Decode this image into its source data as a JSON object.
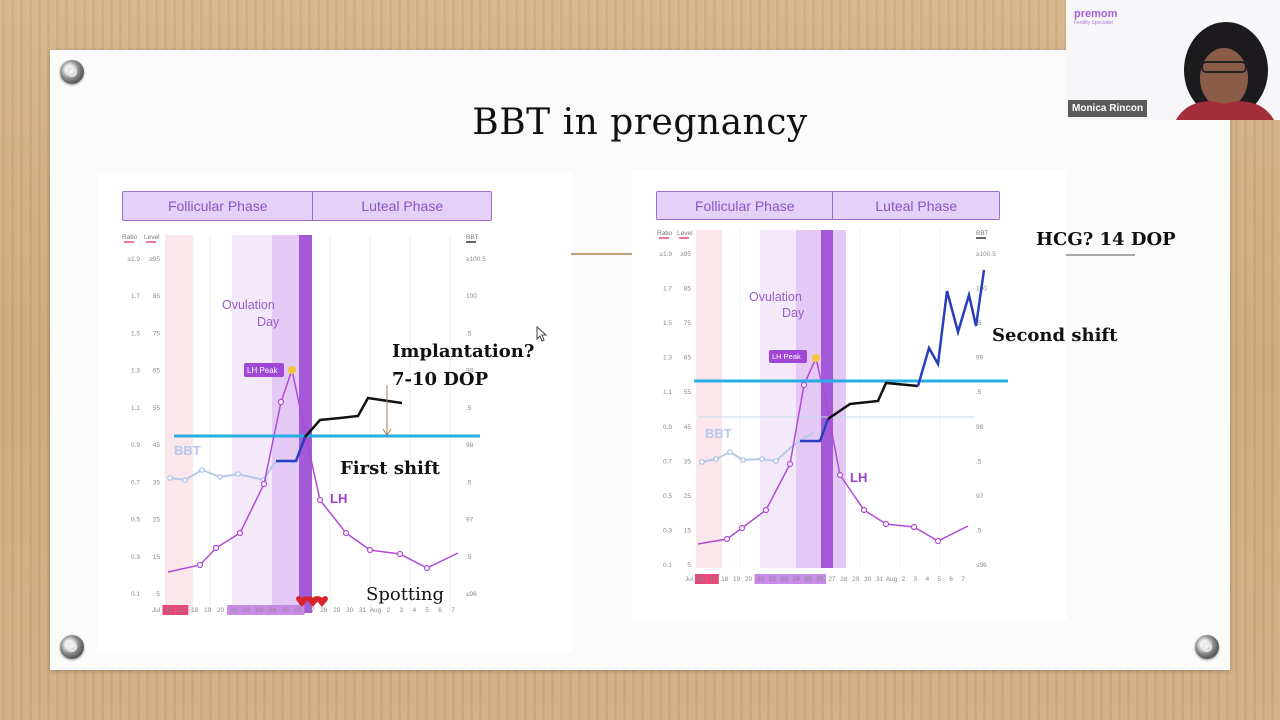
{
  "slide": {
    "title": "BBT in pregnancy"
  },
  "left_chart": {
    "phase_follicular": "Follicular Phase",
    "phase_luteal": "Luteal Phase",
    "axis_left_ratio": "Ratio",
    "axis_left_level": "Level",
    "axis_right_bbt": "BBT",
    "ratio_ticks": [
      "≥1.9",
      "1.7",
      "1.5",
      "1.3",
      "1.1",
      "0.9",
      "0.7",
      "0.5",
      "0.3",
      "0.1"
    ],
    "level_ticks": [
      "≥95",
      "85",
      "75",
      "65",
      "55",
      "45",
      "35",
      "25",
      "15",
      "5"
    ],
    "bbt_ticks": [
      "≥100.5",
      "100",
      ".5",
      "99",
      ".5",
      "98",
      ".5",
      "97",
      ".5",
      "≤96"
    ],
    "x_labels": [
      "Jul",
      "16",
      "17",
      "18",
      "19",
      "20",
      "21",
      "22",
      "23",
      "24",
      "25",
      "26",
      "27",
      "28",
      "29",
      "30",
      "31",
      "Aug",
      "2",
      "3",
      "4",
      "5",
      "6",
      "7"
    ],
    "ovulation_label_1": "Ovulation",
    "ovulation_label_2": "Day",
    "lh_peak": "LH Peak",
    "bbt_label": "BBT",
    "lh_label": "LH"
  },
  "left_annotations": {
    "implantation_1": "Implantation?",
    "implantation_2": "7-10 DOP",
    "first_shift": "First shift",
    "spotting": "Spotting"
  },
  "right_chart": {
    "phase_follicular": "Follicular Phase",
    "phase_luteal": "Luteal Phase",
    "axis_left_ratio": "Ratio",
    "axis_left_level": "Level",
    "axis_right_bbt": "BBT",
    "ratio_ticks": [
      "≥1.9",
      "1.7",
      "1.5",
      "1.3",
      "1.1",
      "0.9",
      "0.7",
      "0.5",
      "0.3",
      "0.1"
    ],
    "level_ticks": [
      "≥95",
      "85",
      "75",
      "65",
      "55",
      "45",
      "35",
      "25",
      "15",
      "5"
    ],
    "bbt_ticks": [
      "≥100.5",
      "100",
      ".5",
      "99",
      ".5",
      "98",
      ".5",
      "97",
      ".5",
      "≤96"
    ],
    "x_labels": [
      "Jul",
      "16",
      "17",
      "18",
      "19",
      "20",
      "21",
      "22",
      "23",
      "24",
      "25",
      "26",
      "27",
      "28",
      "29",
      "30",
      "31",
      "Aug",
      "2",
      "3",
      "4",
      "5",
      "6",
      "7"
    ],
    "ovulation_label_1": "Ovulation",
    "ovulation_label_2": "Day",
    "lh_peak": "LH Peak",
    "bbt_label": "BBT",
    "lh_label": "LH"
  },
  "right_annotations": {
    "hcg": "HCG? 14 DOP",
    "second_shift": "Second shift"
  },
  "webcam": {
    "logo": "premom",
    "logo_sub": "Fertility Specialist",
    "participant_name": "Monica Rincon"
  },
  "colors": {
    "phase_fill": "#e4d1f7",
    "phase_text": "#8a55c5",
    "lh_line": "#b04ad6",
    "bbt_line": "#b7c9ea",
    "coverline": "#26aee3",
    "shift_line_black": "#111111",
    "shift_line_blue": "#2a3dbf"
  }
}
